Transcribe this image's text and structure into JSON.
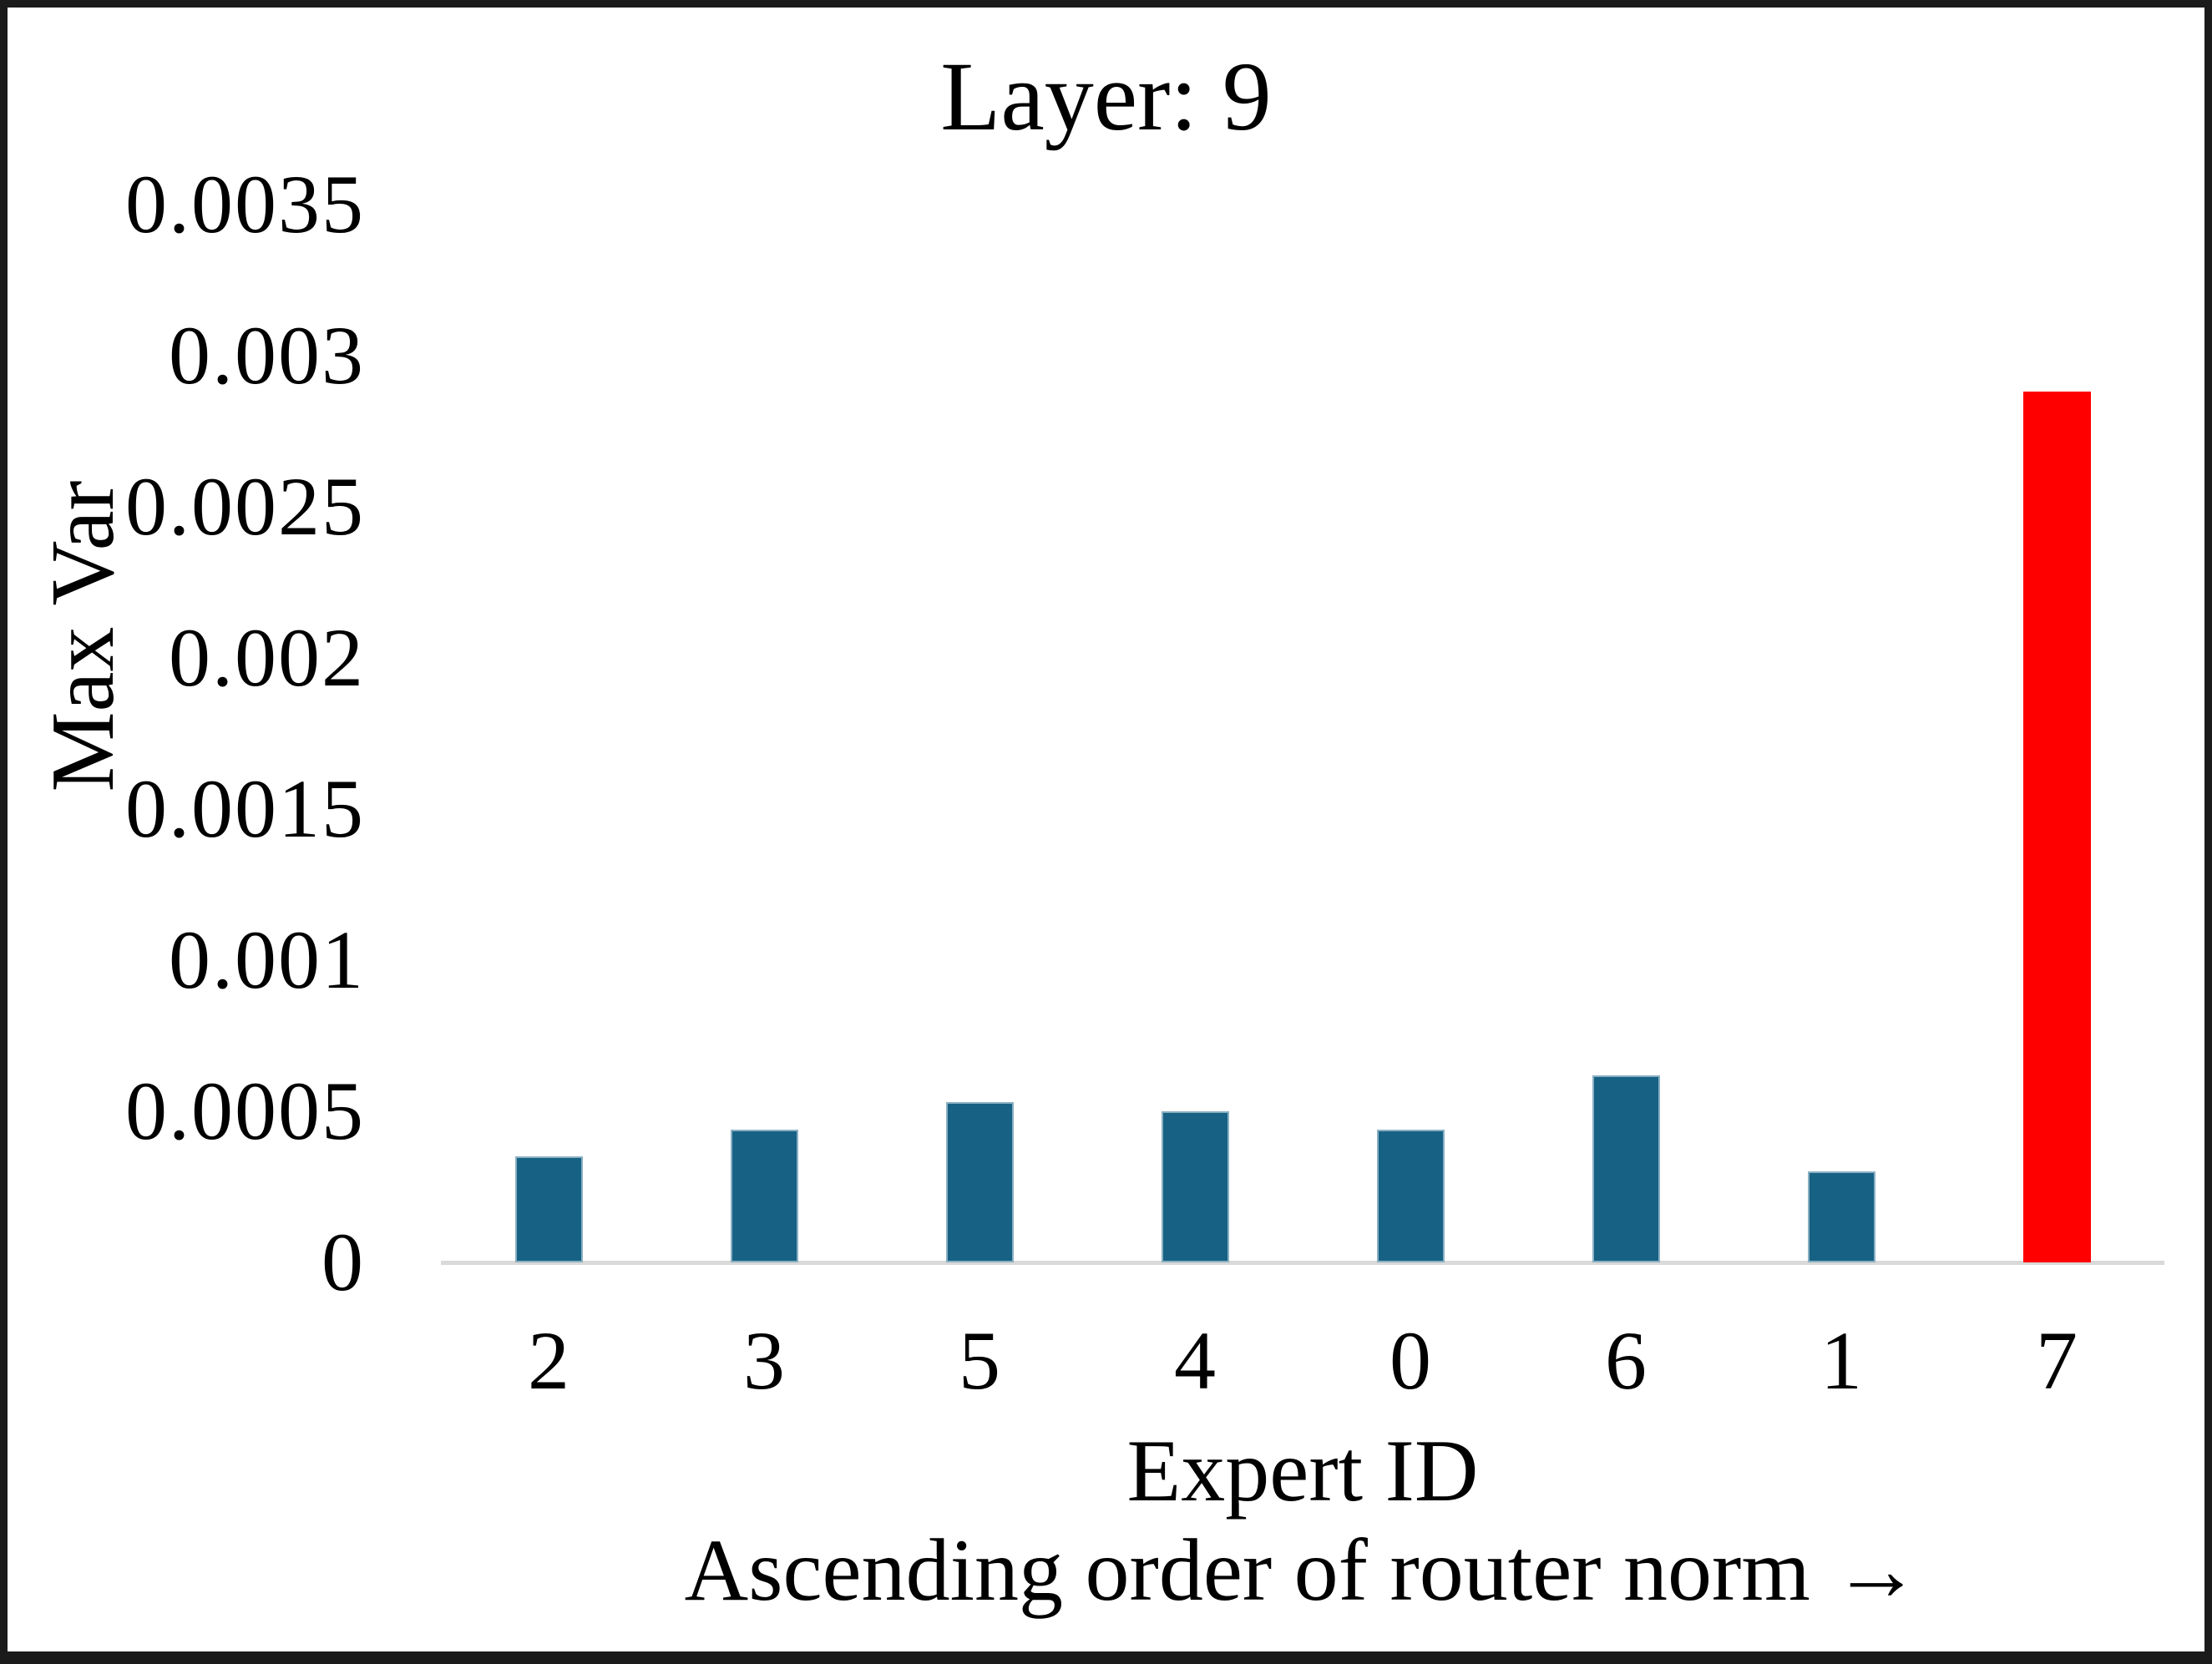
{
  "window": {
    "background_color": "#ffffff",
    "frame_border_color": "#1b1b1b"
  },
  "chart_data": {
    "type": "bar",
    "title": "Layer: 9",
    "categories": [
      "2",
      "3",
      "5",
      "4",
      "0",
      "6",
      "1",
      "7"
    ],
    "values": [
      0.00035,
      0.00044,
      0.00053,
      0.0005,
      0.00044,
      0.00062,
      0.0003,
      0.00288
    ],
    "highlight_category": "7",
    "highlight_index": 7,
    "xlabel": "Expert ID",
    "xlabel_subtitle": "Ascending order of router norm →",
    "ylabel": "Max Var",
    "ylim": [
      0,
      0.0035
    ],
    "ytick_step": 0.0005,
    "ytick_labels": [
      "0",
      "0.0005",
      "0.001",
      "0.0015",
      "0.002",
      "0.0025",
      "0.003",
      "0.0035"
    ],
    "grid": false,
    "legend": false,
    "colors": {
      "bar_fill": "#176284",
      "bar_border": "#8ab0c3",
      "highlight_fill": "#fe0000",
      "axis_line": "#d9d9d9",
      "text": "#000000"
    }
  }
}
